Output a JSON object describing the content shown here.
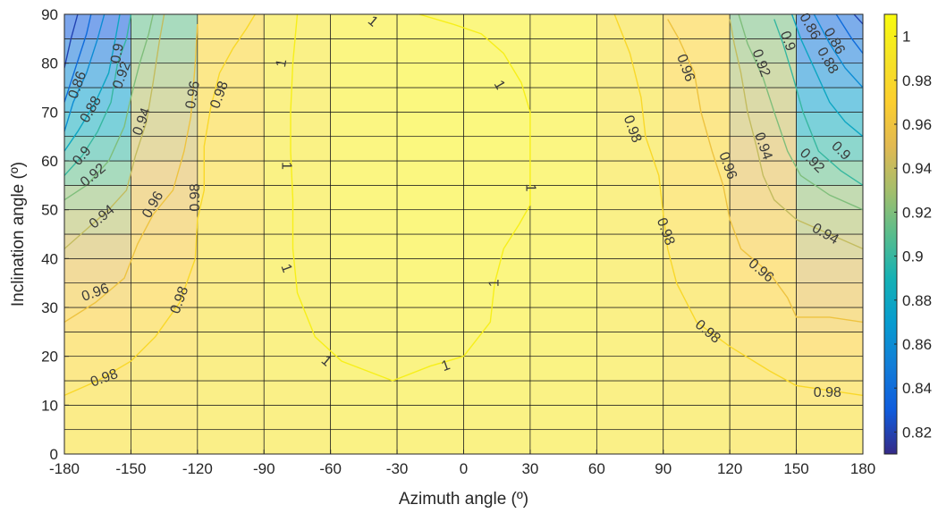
{
  "chart_data": {
    "type": "heatmap",
    "title": "",
    "xlabel": "Azimuth angle (º)",
    "ylabel": "Inclination angle (º)",
    "xlim": [
      -180,
      180
    ],
    "ylim": [
      0,
      90
    ],
    "x_ticks": [
      "-180",
      "-150",
      "-120",
      "-90",
      "-60",
      "-30",
      "0",
      "30",
      "60",
      "90",
      "120",
      "150",
      "180"
    ],
    "y_ticks": [
      "0",
      "10",
      "20",
      "30",
      "40",
      "50",
      "60",
      "70",
      "80",
      "90"
    ],
    "colorbar": {
      "range": [
        0.81,
        1.01
      ],
      "ticks": [
        "0.82",
        "0.84",
        "0.86",
        "0.88",
        "0.9",
        "0.92",
        "0.94",
        "0.96",
        "0.98",
        "1"
      ],
      "colormap": "parula"
    },
    "grid": true,
    "cells": {
      "x_edges": [
        -180,
        -150,
        -120,
        -90,
        -60,
        -30,
        0,
        30,
        60,
        90,
        120,
        150,
        180
      ],
      "y_edges": [
        0,
        5,
        10,
        15,
        20,
        25,
        30,
        35,
        40,
        45,
        50,
        55,
        60,
        65,
        70,
        75,
        80,
        85,
        90
      ],
      "values": [
        [
          0.985,
          0.985,
          0.988,
          0.991,
          0.993,
          0.994,
          0.994,
          0.993,
          0.991,
          0.988,
          0.985,
          0.985
        ],
        [
          0.984,
          0.984,
          0.988,
          0.991,
          0.993,
          0.994,
          0.994,
          0.993,
          0.991,
          0.988,
          0.984,
          0.984
        ],
        [
          0.981,
          0.983,
          0.988,
          0.991,
          0.994,
          0.995,
          0.995,
          0.994,
          0.991,
          0.987,
          0.982,
          0.979
        ],
        [
          0.977,
          0.981,
          0.987,
          0.992,
          0.995,
          0.996,
          0.996,
          0.995,
          0.992,
          0.986,
          0.98,
          0.975
        ],
        [
          0.975,
          0.98,
          0.987,
          0.992,
          0.995,
          0.997,
          0.997,
          0.995,
          0.992,
          0.985,
          0.978,
          0.97
        ],
        [
          0.968,
          0.975,
          0.986,
          0.992,
          0.996,
          0.998,
          0.998,
          0.996,
          0.991,
          0.984,
          0.975,
          0.962
        ],
        [
          0.962,
          0.972,
          0.985,
          0.993,
          0.997,
          0.999,
          0.999,
          0.997,
          0.991,
          0.983,
          0.972,
          0.955
        ],
        [
          0.955,
          0.97,
          0.984,
          0.993,
          0.997,
          1.0,
          1.0,
          0.997,
          0.991,
          0.982,
          0.97,
          0.948
        ],
        [
          0.945,
          0.965,
          0.983,
          0.993,
          0.998,
          1.0,
          1.0,
          0.998,
          0.99,
          0.981,
          0.965,
          0.94
        ],
        [
          0.935,
          0.96,
          0.982,
          0.993,
          0.998,
          1.002,
          1.002,
          0.998,
          0.99,
          0.98,
          0.962,
          0.933
        ],
        [
          0.925,
          0.955,
          0.981,
          0.993,
          0.999,
          1.002,
          1.002,
          0.999,
          0.99,
          0.979,
          0.957,
          0.925
        ],
        [
          0.912,
          0.95,
          0.98,
          0.993,
          0.999,
          1.002,
          1.002,
          0.999,
          0.989,
          0.978,
          0.952,
          0.912
        ],
        [
          0.9,
          0.944,
          0.979,
          0.993,
          0.999,
          1.003,
          1.003,
          0.999,
          0.989,
          0.977,
          0.948,
          0.898
        ],
        [
          0.885,
          0.94,
          0.978,
          0.992,
          0.999,
          1.003,
          1.003,
          0.999,
          0.988,
          0.976,
          0.942,
          0.885
        ],
        [
          0.872,
          0.935,
          0.977,
          0.992,
          0.999,
          1.003,
          1.003,
          0.999,
          0.987,
          0.975,
          0.938,
          0.872
        ],
        [
          0.86,
          0.928,
          0.977,
          0.992,
          0.999,
          1.003,
          1.003,
          0.999,
          0.987,
          0.974,
          0.932,
          0.86
        ],
        [
          0.845,
          0.92,
          0.976,
          0.992,
          0.999,
          1.002,
          1.002,
          0.999,
          0.987,
          0.973,
          0.925,
          0.848
        ],
        [
          0.83,
          0.912,
          0.975,
          0.992,
          0.998,
          1.001,
          1.001,
          0.998,
          0.986,
          0.972,
          0.918,
          0.838
        ]
      ]
    },
    "contours": [
      {
        "level": "1",
        "points": [
          [
            -32,
            15
          ],
          [
            -55,
            19
          ],
          [
            -67,
            24
          ],
          [
            -75,
            33
          ],
          [
            -77,
            42
          ],
          [
            -77,
            52
          ],
          [
            -78,
            62
          ],
          [
            -78,
            70
          ],
          [
            -77,
            80
          ],
          [
            -75,
            90
          ]
        ]
      },
      {
        "level": "1",
        "points": [
          [
            -32,
            15
          ],
          [
            -15,
            18
          ],
          [
            0,
            20
          ],
          [
            12,
            27
          ],
          [
            14,
            35
          ],
          [
            18,
            42
          ],
          [
            25,
            47
          ],
          [
            30,
            51
          ],
          [
            30,
            62
          ],
          [
            30,
            70
          ],
          [
            26,
            76
          ],
          [
            18,
            82
          ],
          [
            8,
            86
          ],
          [
            -5,
            88
          ],
          [
            -20,
            90
          ]
        ]
      },
      {
        "level": "0.98",
        "points": [
          [
            -180,
            12
          ],
          [
            -165,
            15
          ],
          [
            -150,
            19
          ],
          [
            -139,
            24
          ],
          [
            -128,
            31
          ],
          [
            -121,
            40
          ],
          [
            -120,
            48
          ],
          [
            -117,
            54
          ],
          [
            -117,
            63
          ],
          [
            -114,
            71
          ],
          [
            -110,
            78
          ],
          [
            -104,
            83
          ],
          [
            -98,
            87
          ],
          [
            -94,
            90
          ]
        ]
      },
      {
        "level": "0.98",
        "points": [
          [
            180,
            12
          ],
          [
            165,
            13
          ],
          [
            150,
            14
          ],
          [
            138,
            17
          ],
          [
            120,
            22
          ],
          [
            105,
            27
          ],
          [
            96,
            35
          ],
          [
            92,
            42
          ],
          [
            90,
            49
          ],
          [
            88,
            57
          ],
          [
            82,
            65
          ],
          [
            80,
            73
          ],
          [
            75,
            82
          ],
          [
            68,
            90
          ]
        ]
      },
      {
        "level": "0.96",
        "points": [
          [
            -180,
            27
          ],
          [
            -166,
            31
          ],
          [
            -153,
            36
          ],
          [
            -147,
            43
          ],
          [
            -140,
            49
          ],
          [
            -131,
            54
          ],
          [
            -126,
            62
          ],
          [
            -123,
            69
          ],
          [
            -121,
            80
          ],
          [
            -120,
            88
          ]
        ]
      },
      {
        "level": "0.96",
        "points": [
          [
            180,
            27
          ],
          [
            165,
            28
          ],
          [
            150,
            28
          ],
          [
            146,
            32
          ],
          [
            138,
            37
          ],
          [
            125,
            42
          ],
          [
            120,
            48
          ],
          [
            117,
            55
          ],
          [
            112,
            62
          ],
          [
            107,
            70
          ],
          [
            104,
            78
          ],
          [
            97,
            85
          ],
          [
            92,
            89
          ]
        ]
      },
      {
        "level": "0.94",
        "points": [
          [
            -180,
            42
          ],
          [
            -170,
            46
          ],
          [
            -160,
            50
          ],
          [
            -152,
            54
          ],
          [
            -148,
            61
          ],
          [
            -143,
            68
          ],
          [
            -140,
            76
          ],
          [
            -137,
            85
          ],
          [
            -135,
            90
          ]
        ]
      },
      {
        "level": "0.94",
        "points": [
          [
            180,
            42
          ],
          [
            165,
            45
          ],
          [
            150,
            48
          ],
          [
            140,
            52
          ],
          [
            135,
            57
          ],
          [
            132,
            63
          ],
          [
            128,
            70
          ],
          [
            125,
            78
          ],
          [
            122,
            84
          ],
          [
            120,
            89
          ]
        ]
      },
      {
        "level": "0.92",
        "points": [
          [
            -180,
            52
          ],
          [
            -170,
            55
          ],
          [
            -160,
            60
          ],
          [
            -153,
            67
          ],
          [
            -150,
            73
          ],
          [
            -146,
            80
          ],
          [
            -142,
            86
          ],
          [
            -140,
            90
          ]
        ]
      },
      {
        "level": "0.92",
        "points": [
          [
            180,
            50
          ],
          [
            165,
            53
          ],
          [
            152,
            57
          ],
          [
            146,
            62
          ],
          [
            140,
            70
          ],
          [
            135,
            77
          ],
          [
            128,
            84
          ],
          [
            124,
            90
          ]
        ]
      },
      {
        "level": "0.9",
        "points": [
          [
            -180,
            57
          ],
          [
            -172,
            61
          ],
          [
            -165,
            66
          ],
          [
            -159,
            72
          ],
          [
            -156,
            80
          ],
          [
            -152,
            85
          ],
          [
            -150,
            90
          ]
        ]
      },
      {
        "level": "0.9",
        "points": [
          [
            180,
            55
          ],
          [
            170,
            58
          ],
          [
            160,
            62
          ],
          [
            153,
            70
          ],
          [
            148,
            78
          ],
          [
            144,
            84
          ],
          [
            140,
            89
          ]
        ]
      },
      {
        "level": "0.88",
        "points": [
          [
            -180,
            62
          ],
          [
            -174,
            66
          ],
          [
            -166,
            72
          ],
          [
            -160,
            78
          ],
          [
            -157,
            85
          ],
          [
            -155,
            90
          ]
        ]
      },
      {
        "level": "0.88",
        "points": [
          [
            180,
            65
          ],
          [
            172,
            68
          ],
          [
            165,
            72
          ],
          [
            158,
            79
          ],
          [
            152,
            85
          ],
          [
            148,
            90
          ]
        ]
      },
      {
        "level": "0.86",
        "points": [
          [
            -180,
            66
          ],
          [
            -176,
            72
          ],
          [
            -170,
            78
          ],
          [
            -165,
            85
          ],
          [
            -162,
            90
          ]
        ]
      },
      {
        "level": "0.86",
        "points": [
          [
            180,
            75
          ],
          [
            172,
            79
          ],
          [
            165,
            84
          ],
          [
            158,
            90
          ]
        ]
      },
      {
        "level": "0.84",
        "points": [
          [
            -180,
            72
          ],
          [
            -175,
            79
          ],
          [
            -170,
            86
          ],
          [
            -168,
            90
          ]
        ]
      },
      {
        "level": "0.84",
        "points": [
          [
            180,
            82
          ],
          [
            175,
            85
          ],
          [
            168,
            90
          ]
        ]
      },
      {
        "level": "0.82",
        "points": [
          [
            -180,
            79
          ],
          [
            -177,
            85
          ],
          [
            -174,
            90
          ]
        ]
      },
      {
        "level": "0.82",
        "points": [
          [
            180,
            88
          ],
          [
            176,
            90
          ]
        ]
      }
    ],
    "contour_labels": [
      {
        "text": "1",
        "x": -41,
        "y": 88.5,
        "angle": 40
      },
      {
        "text": "1",
        "x": 16,
        "y": 75.5,
        "angle": 60
      },
      {
        "text": "1",
        "x": -82,
        "y": 80,
        "angle": -80
      },
      {
        "text": "1",
        "x": -80,
        "y": 59,
        "angle": 90
      },
      {
        "text": "1",
        "x": 30,
        "y": 54.5,
        "angle": 90
      },
      {
        "text": "1",
        "x": -80,
        "y": 38,
        "angle": 70
      },
      {
        "text": "1",
        "x": 14,
        "y": 35,
        "angle": -90
      },
      {
        "text": "1",
        "x": -62,
        "y": 19,
        "angle": 40
      },
      {
        "text": "1",
        "x": -8,
        "y": 18,
        "angle": -20
      },
      {
        "text": "0.98",
        "x": -110,
        "y": 73.5,
        "angle": -70
      },
      {
        "text": "0.98",
        "x": -121,
        "y": 52.5,
        "angle": -90
      },
      {
        "text": "0.98",
        "x": -128,
        "y": 31.5,
        "angle": -70
      },
      {
        "text": "0.98",
        "x": -162,
        "y": 15.5,
        "angle": -20
      },
      {
        "text": "0.98",
        "x": 76,
        "y": 66.5,
        "angle": 70
      },
      {
        "text": "0.98",
        "x": 91,
        "y": 45.5,
        "angle": 70
      },
      {
        "text": "0.98",
        "x": 110,
        "y": 25,
        "angle": 40
      },
      {
        "text": "0.98",
        "x": 164,
        "y": 12.5,
        "angle": 0
      },
      {
        "text": "0.96",
        "x": -140,
        "y": 51,
        "angle": -60
      },
      {
        "text": "0.96",
        "x": -122,
        "y": 73.5,
        "angle": -80
      },
      {
        "text": "0.96",
        "x": -166,
        "y": 33,
        "angle": -20
      },
      {
        "text": "0.96",
        "x": 100,
        "y": 79,
        "angle": 70
      },
      {
        "text": "0.96",
        "x": 119,
        "y": 59,
        "angle": 70
      },
      {
        "text": "0.96",
        "x": 134,
        "y": 37.5,
        "angle": 40
      },
      {
        "text": "0.94",
        "x": -145,
        "y": 68,
        "angle": -70
      },
      {
        "text": "0.94",
        "x": -163,
        "y": 48.5,
        "angle": -40
      },
      {
        "text": "0.94",
        "x": 135,
        "y": 63,
        "angle": 70
      },
      {
        "text": "0.94",
        "x": 163,
        "y": 45,
        "angle": 30
      },
      {
        "text": "0.92",
        "x": -154,
        "y": 77.5,
        "angle": -70
      },
      {
        "text": "0.92",
        "x": -167,
        "y": 57,
        "angle": -40
      },
      {
        "text": "0.92",
        "x": 134,
        "y": 80,
        "angle": 70
      },
      {
        "text": "0.92",
        "x": 157,
        "y": 60,
        "angle": 45
      },
      {
        "text": "0.9",
        "x": -156,
        "y": 82,
        "angle": -80
      },
      {
        "text": "0.9",
        "x": -172,
        "y": 61,
        "angle": -50
      },
      {
        "text": "0.9",
        "x": 146,
        "y": 84.5,
        "angle": 70
      },
      {
        "text": "0.9",
        "x": 170,
        "y": 62,
        "angle": 45
      },
      {
        "text": "0.88",
        "x": -168,
        "y": 70.5,
        "angle": -60
      },
      {
        "text": "0.88",
        "x": 164,
        "y": 80.5,
        "angle": 60
      },
      {
        "text": "0.86",
        "x": -174,
        "y": 75.5,
        "angle": -70
      },
      {
        "text": "0.86",
        "x": 167,
        "y": 84.5,
        "angle": 60
      },
      {
        "text": "0.86",
        "x": 156,
        "y": 87.5,
        "angle": 60
      }
    ]
  }
}
